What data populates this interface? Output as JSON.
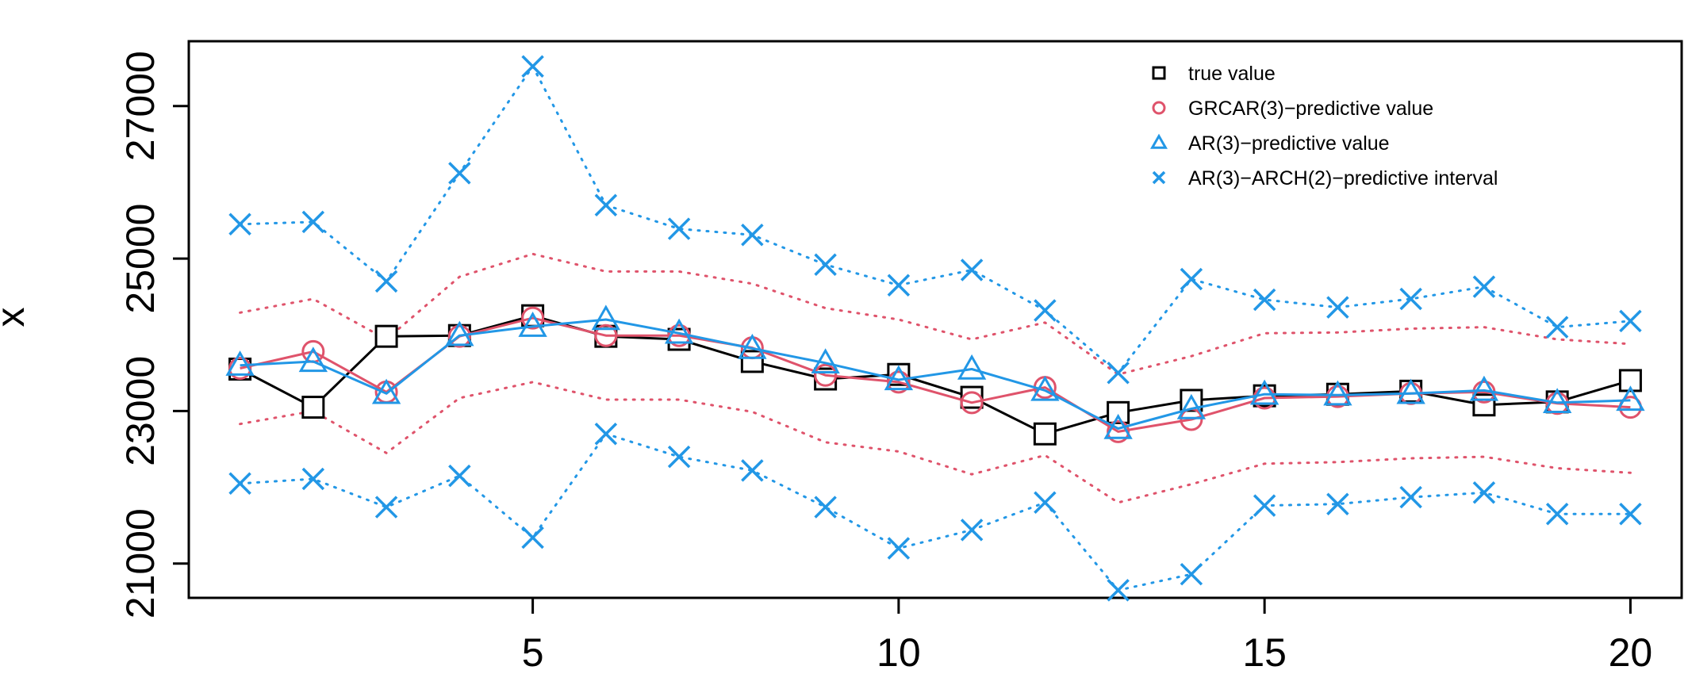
{
  "chart_data": {
    "type": "line",
    "title": "",
    "xlabel": "",
    "ylabel": "x",
    "xlim": [
      0.3,
      20.7
    ],
    "ylim": [
      20550,
      27850
    ],
    "grid": false,
    "legend_position": "top-right",
    "x_ticks": [
      5,
      10,
      15,
      20
    ],
    "x_tick_labels": [
      "5",
      "10",
      "15",
      "20"
    ],
    "y_ticks": [
      21000,
      23000,
      25000,
      27000
    ],
    "y_tick_labels": [
      "21000",
      "23000",
      "25000",
      "27000"
    ],
    "x": [
      1,
      2,
      3,
      4,
      5,
      6,
      7,
      8,
      9,
      10,
      11,
      12,
      13,
      14,
      15,
      16,
      17,
      18,
      19,
      20
    ],
    "colors": {
      "true_value": "#000000",
      "grcar": "#DF536B",
      "ar": "#2297E6",
      "interval": "#2297E6"
    },
    "legend": [
      {
        "key": "true_value",
        "label": "true value",
        "marker": "square"
      },
      {
        "key": "grcar",
        "label": "GRCAR(3)−predictive value",
        "marker": "circle"
      },
      {
        "key": "ar",
        "label": "AR(3)−predictive value",
        "marker": "triangle"
      },
      {
        "key": "interval",
        "label": "AR(3)−ARCH(2)−predictive interval",
        "marker": "cross"
      }
    ],
    "series": [
      {
        "key": "true_value",
        "marker": "square",
        "line": "solid",
        "values": [
          23550,
          23050,
          23980,
          23990,
          24250,
          23980,
          23940,
          23650,
          23420,
          23480,
          23180,
          22700,
          22980,
          23140,
          23200,
          23220,
          23260,
          23080,
          23120,
          23400
        ]
      },
      {
        "key": "grcar",
        "marker": "circle",
        "line": "solid",
        "values": [
          23560,
          23780,
          23250,
          23980,
          24220,
          23990,
          23990,
          23830,
          23470,
          23380,
          23110,
          23310,
          22730,
          22890,
          23170,
          23190,
          23230,
          23250,
          23100,
          23050
        ]
      },
      {
        "key": "ar",
        "marker": "triangle",
        "line": "solid",
        "values": [
          23600,
          23650,
          23230,
          23990,
          24110,
          24200,
          24020,
          23820,
          23630,
          23410,
          23550,
          23270,
          22770,
          23030,
          23220,
          23210,
          23230,
          23270,
          23110,
          23140
        ]
      },
      {
        "key": "interval_upper",
        "marker": "cross",
        "line": "dotted",
        "color_key": "interval",
        "values": [
          25450,
          25480,
          24700,
          26120,
          27520,
          25700,
          25390,
          25310,
          24920,
          24650,
          24850,
          24320,
          23500,
          24730,
          24460,
          24360,
          24470,
          24630,
          24100,
          24180
        ]
      },
      {
        "key": "interval_lower",
        "marker": "cross",
        "line": "dotted",
        "color_key": "interval",
        "values": [
          22050,
          22110,
          21740,
          22150,
          21340,
          22700,
          22400,
          22220,
          21740,
          21200,
          21440,
          21800,
          20650,
          20860,
          21760,
          21780,
          21870,
          21930,
          21650,
          21650
        ]
      },
      {
        "key": "grcar_upper",
        "marker": "none",
        "line": "dotted",
        "color_key": "grcar",
        "values": [
          24290,
          24470,
          23940,
          24760,
          25060,
          24830,
          24830,
          24670,
          24350,
          24200,
          23940,
          24160,
          23480,
          23720,
          24020,
          24030,
          24080,
          24100,
          23940,
          23880
        ]
      },
      {
        "key": "grcar_lower",
        "marker": "none",
        "line": "dotted",
        "color_key": "grcar",
        "values": [
          22830,
          23000,
          22450,
          23170,
          23380,
          23150,
          23150,
          22990,
          22590,
          22470,
          22170,
          22420,
          21800,
          22040,
          22310,
          22330,
          22380,
          22400,
          22250,
          22190
        ]
      }
    ]
  }
}
